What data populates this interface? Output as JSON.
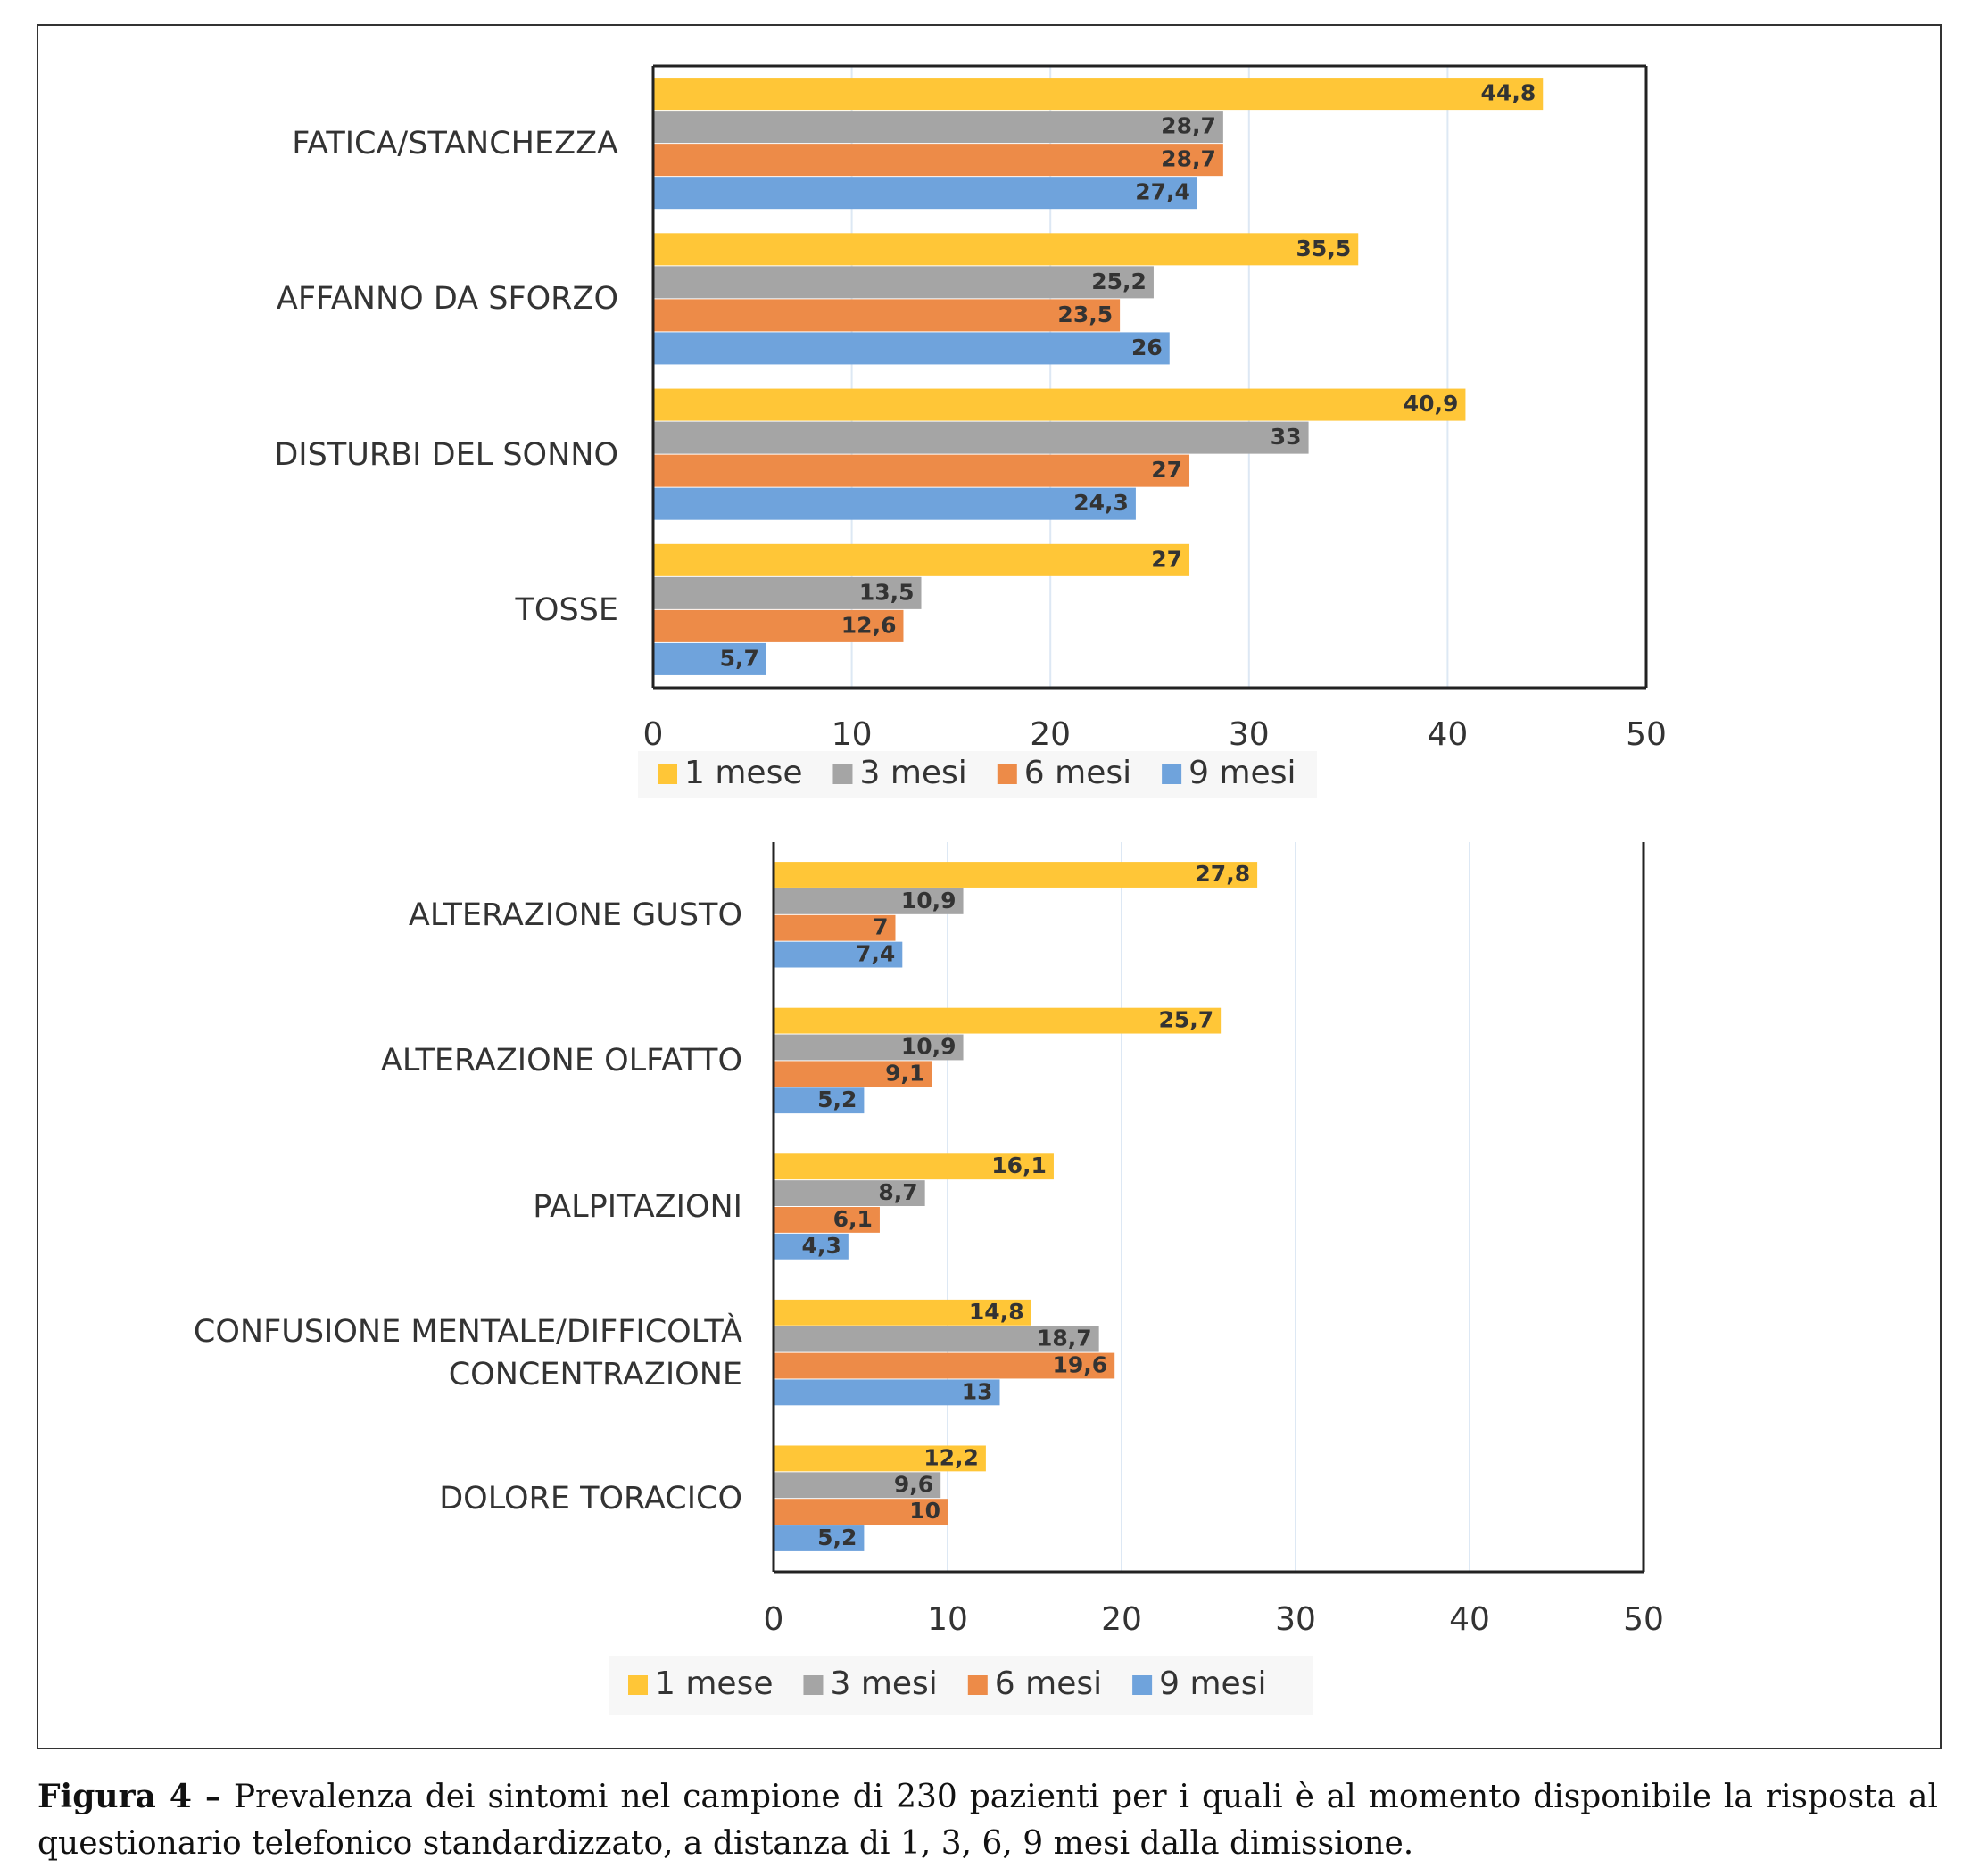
{
  "chart_data": [
    {
      "type": "bar",
      "orientation": "horizontal",
      "categories": [
        "FATICA/STANCHEZZA",
        "AFFANNO DA SFORZO",
        "DISTURBI DEL SONNO",
        "TOSSE"
      ],
      "series": [
        {
          "name": "1 mese",
          "color": "#FFC637",
          "values": [
            44.8,
            35.5,
            40.9,
            27
          ],
          "value_labels": [
            "44,8",
            "35,5",
            "40,9",
            "27"
          ]
        },
        {
          "name": "3 mesi",
          "color": "#A5A5A5",
          "values": [
            28.7,
            25.2,
            33,
            13.5
          ],
          "value_labels": [
            "28,7",
            "25,2",
            "33",
            "13,5"
          ]
        },
        {
          "name": "6 mesi",
          "color": "#ED8B48",
          "values": [
            28.7,
            23.5,
            27,
            12.6
          ],
          "value_labels": [
            "28,7",
            "23,5",
            "27",
            "12,6"
          ]
        },
        {
          "name": "9 mesi",
          "color": "#6FA3DC",
          "values": [
            27.4,
            26,
            24.3,
            5.7
          ],
          "value_labels": [
            "27,4",
            "26",
            "24,3",
            "5,7"
          ]
        }
      ],
      "xlim": [
        0,
        50
      ],
      "xticks": [
        0,
        10,
        20,
        30,
        40,
        50
      ],
      "grid": true,
      "legend": "bottom"
    },
    {
      "type": "bar",
      "orientation": "horizontal",
      "categories": [
        "ALTERAZIONE GUSTO",
        "ALTERAZIONE OLFATTO",
        "PALPITAZIONI",
        "CONFUSIONE MENTALE/DIFFICOLTÀ CONCENTRAZIONE",
        "DOLORE TORACICO"
      ],
      "series": [
        {
          "name": "1 mese",
          "color": "#FFC637",
          "values": [
            27.8,
            25.7,
            16.1,
            14.8,
            12.2
          ],
          "value_labels": [
            "27,8",
            "25,7",
            "16,1",
            "14,8",
            "12,2"
          ]
        },
        {
          "name": "3 mesi",
          "color": "#A5A5A5",
          "values": [
            10.9,
            10.9,
            8.7,
            18.7,
            9.6
          ],
          "value_labels": [
            "10,9",
            "10,9",
            "8,7",
            "18,7",
            "9,6"
          ]
        },
        {
          "name": "6 mesi",
          "color": "#ED8B48",
          "values": [
            7,
            9.1,
            6.1,
            19.6,
            10
          ],
          "value_labels": [
            "7",
            "9,1",
            "6,1",
            "19,6",
            "10"
          ]
        },
        {
          "name": "9 mesi",
          "color": "#6FA3DC",
          "values": [
            7.4,
            5.2,
            4.3,
            13,
            5.2
          ],
          "value_labels": [
            "7,4",
            "5,2",
            "4,3",
            "13",
            "5,2"
          ]
        }
      ],
      "xlim": [
        0,
        50
      ],
      "xticks": [
        0,
        10,
        20,
        30,
        40,
        50
      ],
      "grid": true,
      "legend": "bottom"
    }
  ],
  "caption": {
    "label": "Figura 4 –",
    "text": "Prevalenza dei sintomi nel campione di 230 pazienti per i quali è al momento disponibile la risposta al questionario telefonico standardizzato, a distanza di 1, 3, 6, 9 mesi dalla dimissione."
  }
}
